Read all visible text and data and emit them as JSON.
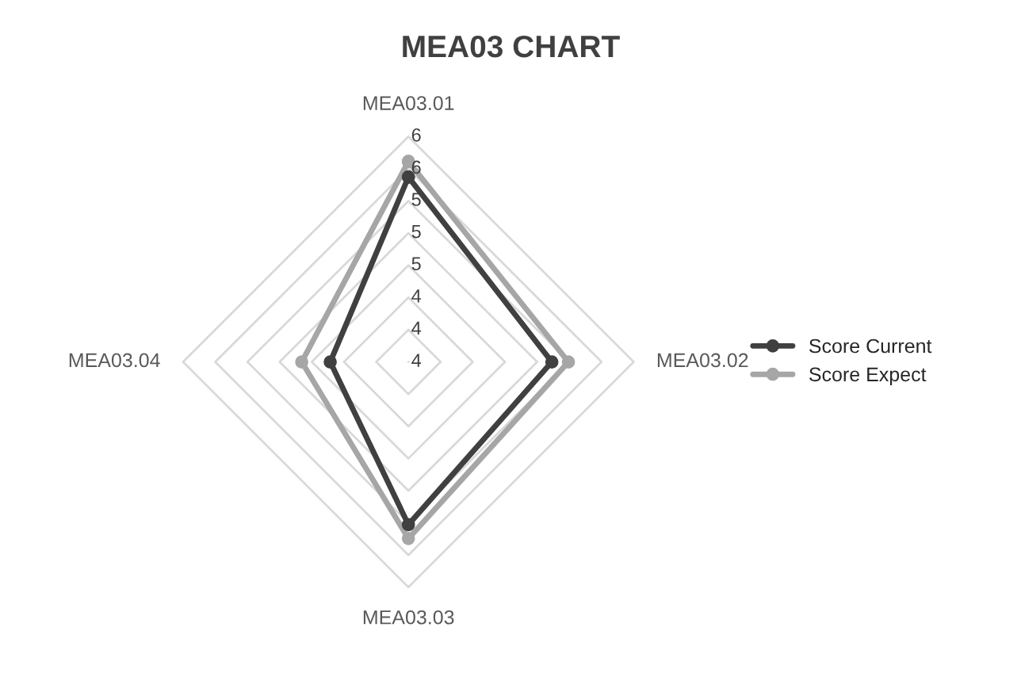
{
  "chart_data": {
    "type": "radar",
    "title": "MEA03 CHART",
    "categories": [
      "MEA03.01",
      "MEA03.02",
      "MEA03.03",
      "MEA03.04"
    ],
    "series": [
      {
        "name": "Score Current",
        "color": "#404040",
        "values": [
          5.51,
          5.06,
          5.27,
          4.35
        ]
      },
      {
        "name": "Score Expect",
        "color": "#a6a6a6",
        "values": [
          5.68,
          5.24,
          5.42,
          4.66
        ]
      }
    ],
    "ylim": [
      3.5,
      5.95
    ],
    "yticks": [
      {
        "value": 3.5,
        "label": "4"
      },
      {
        "value": 3.85,
        "label": "4"
      },
      {
        "value": 4.2,
        "label": "4"
      },
      {
        "value": 4.55,
        "label": "5"
      },
      {
        "value": 4.9,
        "label": "5"
      },
      {
        "value": 5.25,
        "label": "5"
      },
      {
        "value": 5.6,
        "label": "6"
      },
      {
        "value": 5.95,
        "label": "6"
      }
    ],
    "grid": true,
    "legend": "right",
    "marker": "circle",
    "line_style": "solid"
  }
}
